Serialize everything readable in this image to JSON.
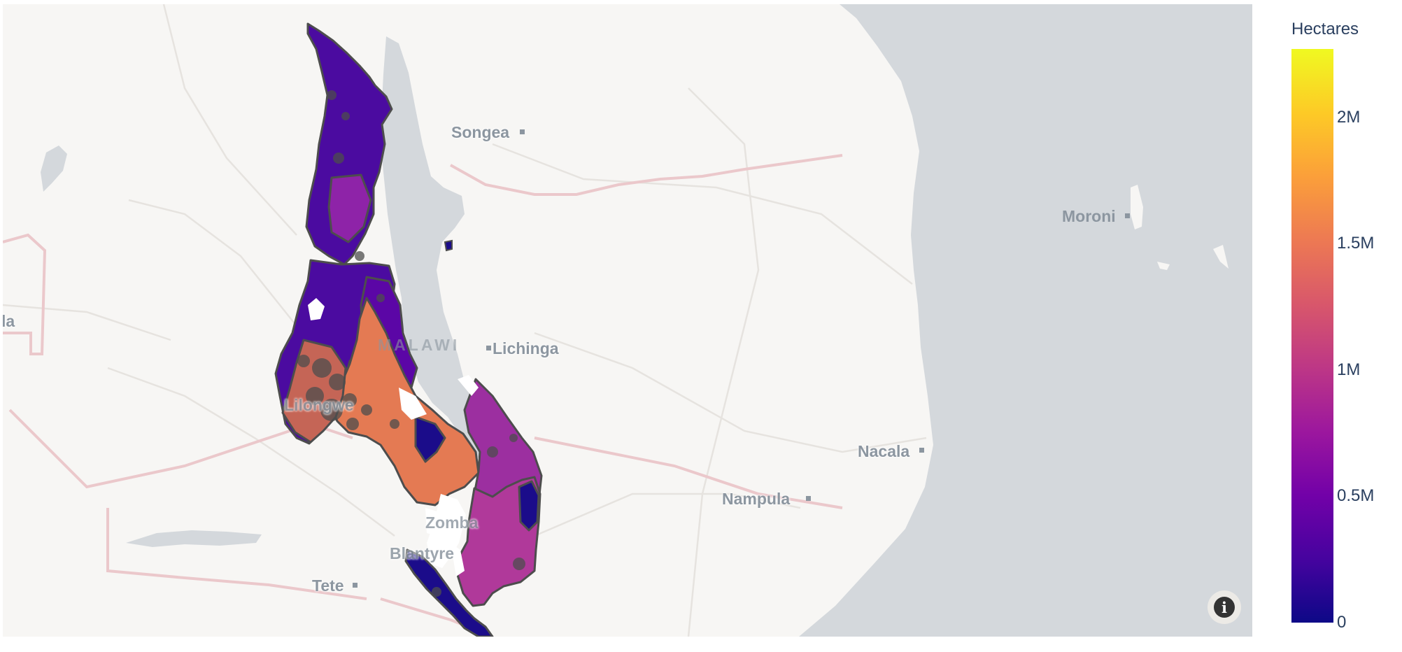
{
  "map": {
    "places": {
      "songea": "Songea",
      "moroni": "Moroni",
      "lichinga": "Lichinga",
      "nacala": "Nacala",
      "nampula": "Nampula",
      "tete": "Tete",
      "blantyre": "Blantyre",
      "lilongwe": "Lilongwe",
      "zomba": "Zomba",
      "malawi": "MALAWI",
      "zambia_fragment": "la"
    },
    "colors": {
      "land": "#f7f6f4",
      "water": "#d4d8dc",
      "borders": "#ebc8cb",
      "roads": "#e4e2de",
      "region_outline": "#4d4d4d"
    },
    "info_icon": "info-icon"
  },
  "colorbar": {
    "title": "Hectares",
    "colorscale": "plasma",
    "range": [
      0,
      2270000
    ],
    "ticks": [
      {
        "label": "2M",
        "value": 2000000
      },
      {
        "label": "1.5M",
        "value": 1500000
      },
      {
        "label": "1M",
        "value": 1000000
      },
      {
        "label": "0.5M",
        "value": 500000
      },
      {
        "label": "0",
        "value": 0
      }
    ]
  }
}
